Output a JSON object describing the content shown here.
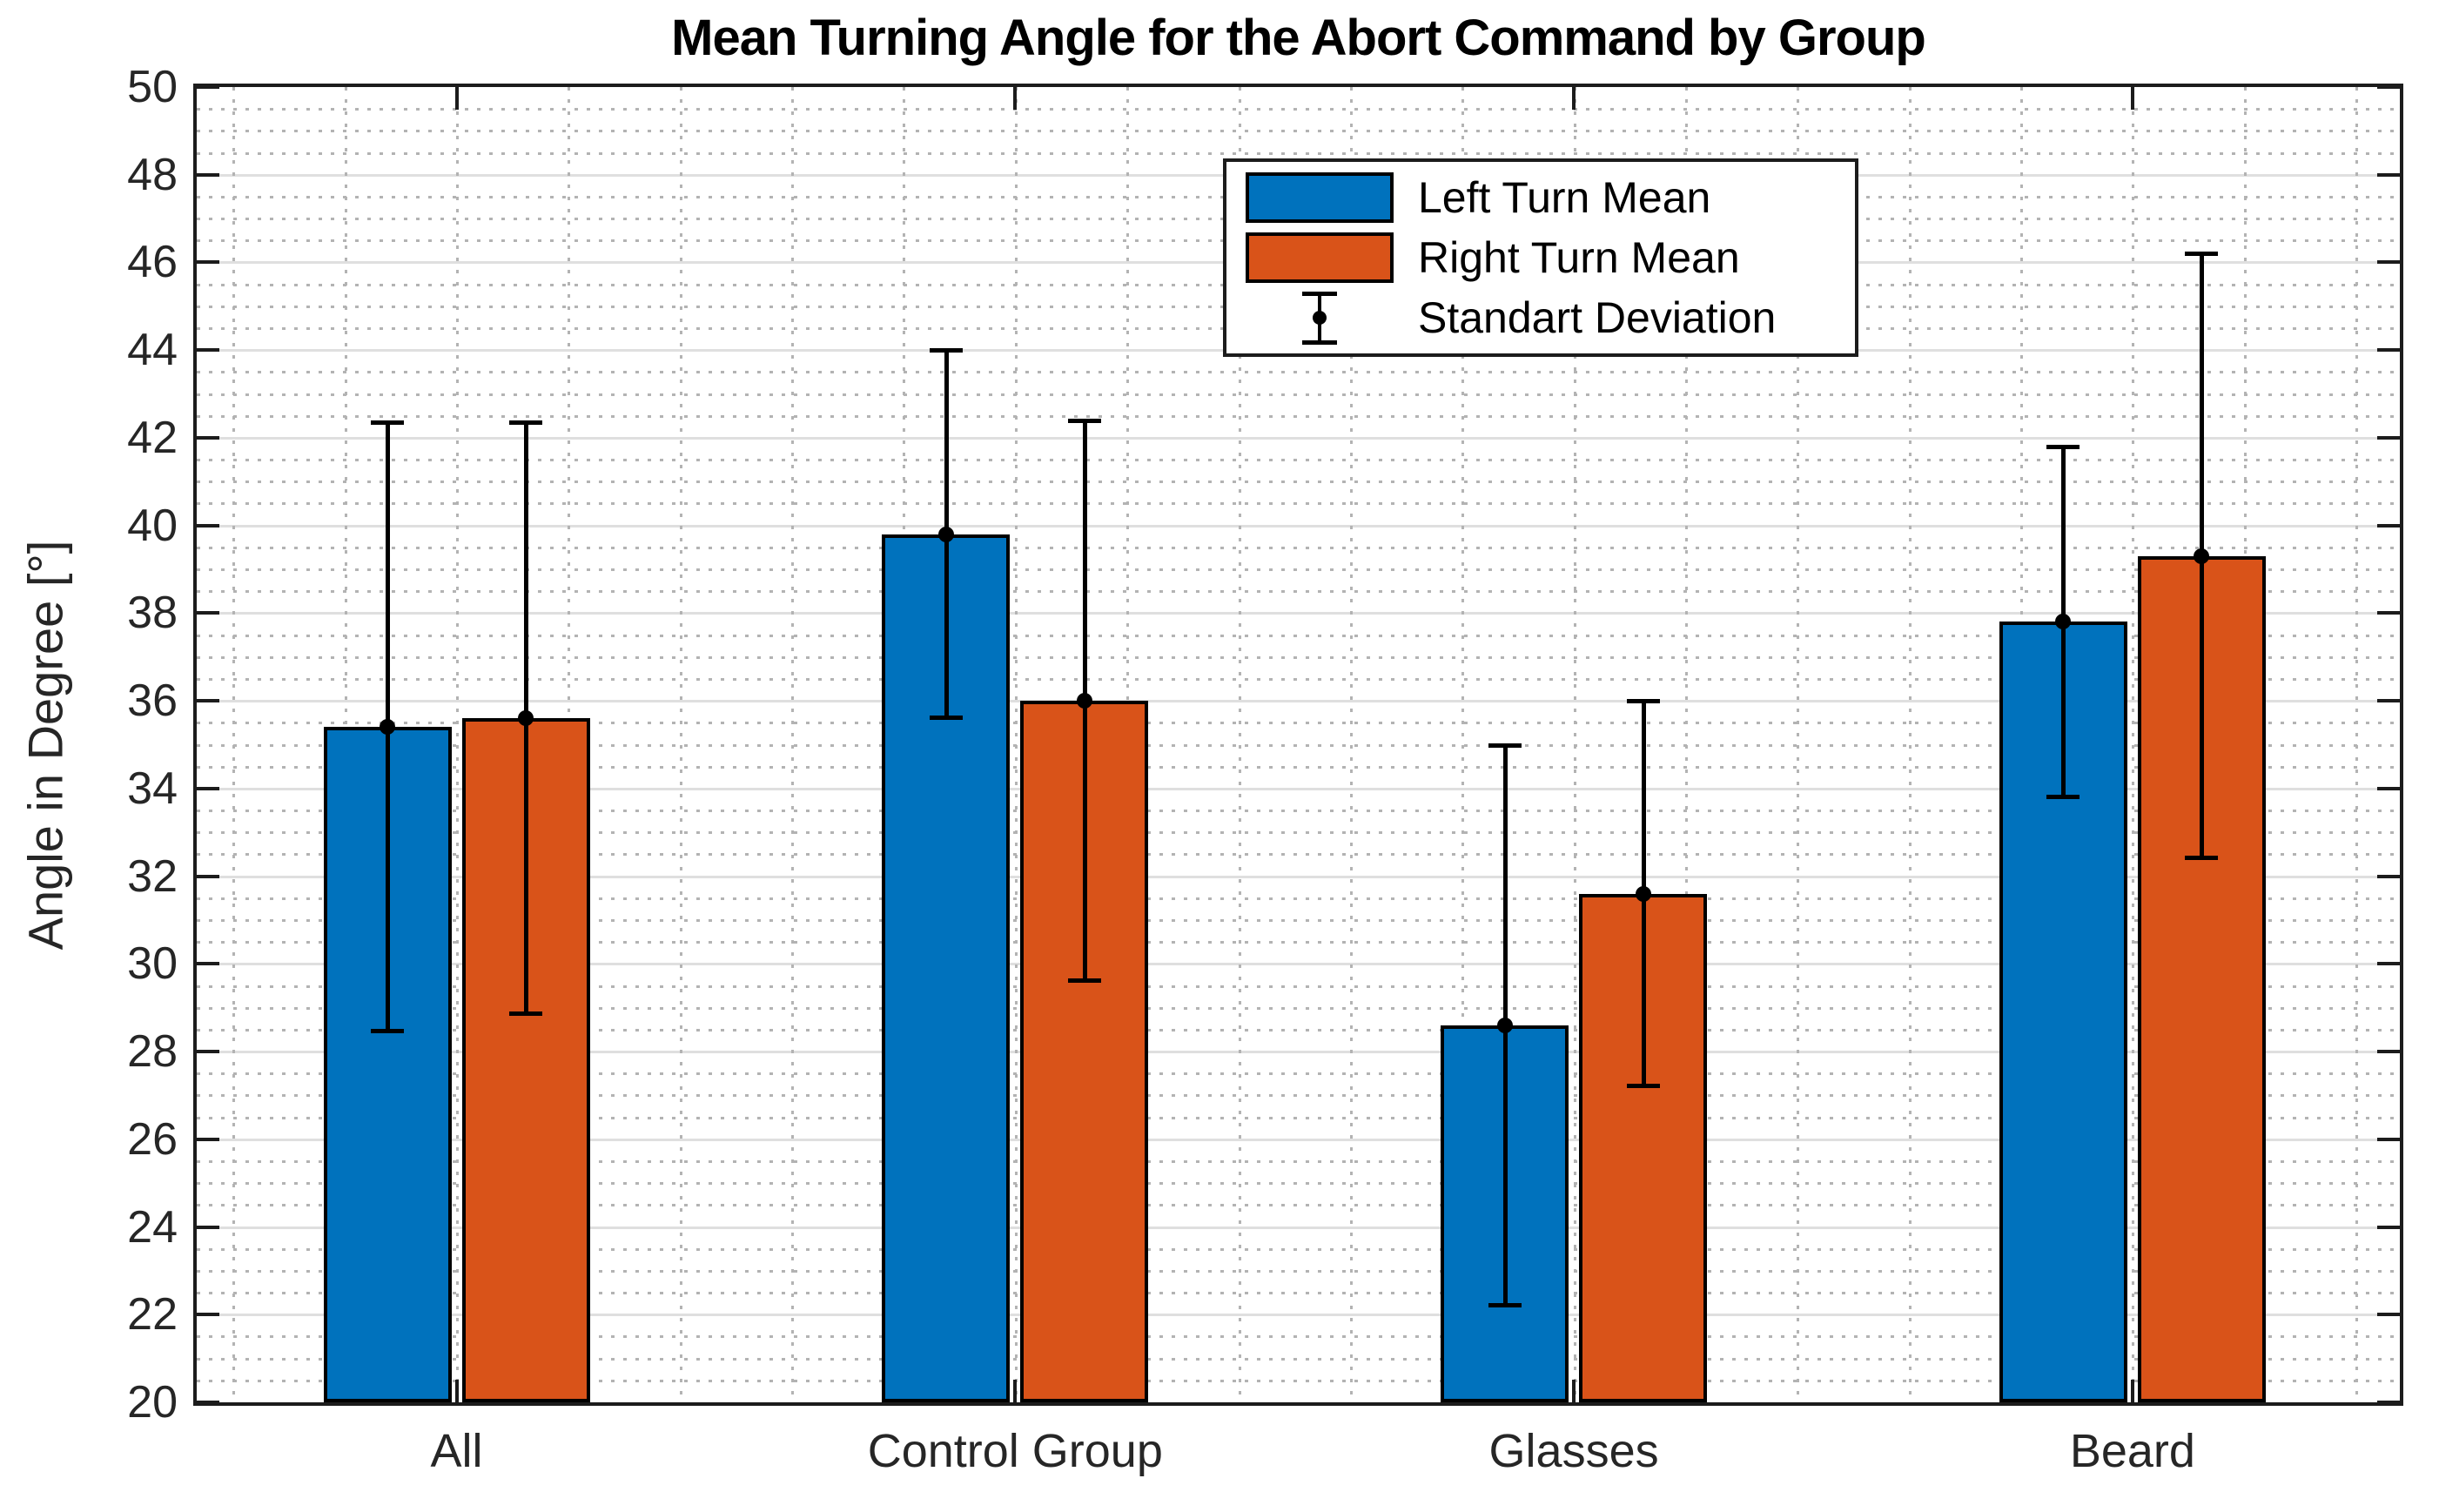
{
  "figure": {
    "title": "Mean Turning Angle for the Abort Command by Group"
  },
  "chart_data": {
    "type": "bar",
    "title": "Mean Turning Angle for the Abort Command by Group",
    "xlabel": "",
    "ylabel": "Angle in Degree [°]",
    "ylim": [
      20,
      50
    ],
    "ytick_step": 2,
    "yticks": [
      20,
      22,
      24,
      26,
      28,
      30,
      32,
      34,
      36,
      38,
      40,
      42,
      44,
      46,
      48,
      50
    ],
    "minor_tick_y": 0.5,
    "grid": "on",
    "minor_grid": "on",
    "categories": [
      "All",
      "Control Group",
      "Glasses",
      "Beard"
    ],
    "series": [
      {
        "name": "Left Turn Mean",
        "color": "#0072BD",
        "means": [
          35.4,
          39.8,
          28.6,
          37.8
        ],
        "std": [
          6.95,
          4.2,
          6.4,
          4.0
        ]
      },
      {
        "name": "Right Turn Mean",
        "color": "#D95319",
        "means": [
          35.6,
          36.0,
          31.6,
          39.3
        ],
        "std": [
          6.75,
          6.4,
          4.4,
          6.9
        ]
      }
    ],
    "error_bars": {
      "name": "Standart Deviation",
      "color": "#000000",
      "style": "vertical line, end caps, dot marker at mean"
    },
    "legend_position": "north (right of center)"
  }
}
